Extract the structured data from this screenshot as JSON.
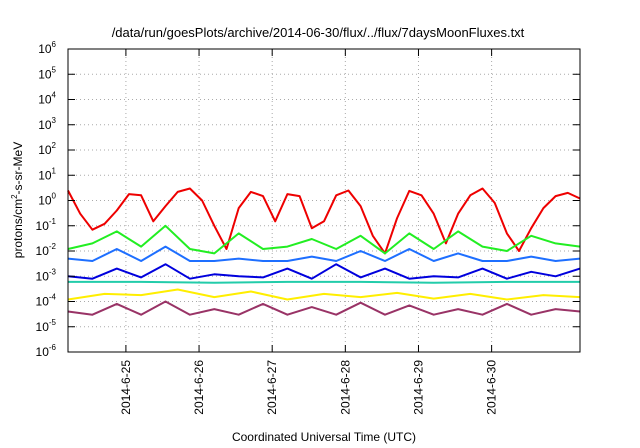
{
  "chart_data": {
    "type": "line",
    "title": "/data/run/goesPlots/archive/2014-06-30/flux/../flux/7daysMoonFluxes.txt",
    "xlabel": "Coordinated Universal Time (UTC)",
    "ylabel": {
      "base": "protons/cm",
      "sup": "2",
      "rest": "-s-sr-MeV"
    },
    "yscale": "log",
    "ylim": [
      1e-06,
      1000000.0
    ],
    "y_ticks": [
      {
        "base": "10",
        "exp": "-6",
        "value": 1e-06
      },
      {
        "base": "10",
        "exp": "-5",
        "value": 1e-05
      },
      {
        "base": "10",
        "exp": "-4",
        "value": 0.0001
      },
      {
        "base": "10",
        "exp": "-3",
        "value": 0.001
      },
      {
        "base": "10",
        "exp": "-2",
        "value": 0.01
      },
      {
        "base": "10",
        "exp": "-1",
        "value": 0.1
      },
      {
        "base": "10",
        "exp": "0",
        "value": 1
      },
      {
        "base": "10",
        "exp": "1",
        "value": 10
      },
      {
        "base": "10",
        "exp": "2",
        "value": 100
      },
      {
        "base": "10",
        "exp": "3",
        "value": 1000
      },
      {
        "base": "10",
        "exp": "4",
        "value": 10000
      },
      {
        "base": "10",
        "exp": "5",
        "value": 100000
      },
      {
        "base": "10",
        "exp": "6",
        "value": 1000000
      }
    ],
    "xlim": [
      "2014-06-24T05:00",
      "2014-07-01T05:00"
    ],
    "x_ticks": [
      {
        "label": "2014-6-25",
        "t": "2014-06-25T00:00"
      },
      {
        "label": "2014-6-26",
        "t": "2014-06-26T00:00"
      },
      {
        "label": "2014-6-27",
        "t": "2014-06-27T00:00"
      },
      {
        "label": "2014-6-28",
        "t": "2014-06-28T00:00"
      },
      {
        "label": "2014-6-29",
        "t": "2014-06-29T00:00"
      },
      {
        "label": "2014-6-30",
        "t": "2014-06-30T00:00"
      }
    ],
    "grid": true,
    "legend": "none",
    "series": [
      {
        "color": "#ee0000",
        "x": [
          "2014-06-24T05:00",
          "2014-06-24T09:00",
          "2014-06-24T13:00",
          "2014-06-24T17:00",
          "2014-06-24T21:00",
          "2014-06-25T01:00",
          "2014-06-25T05:00",
          "2014-06-25T09:00",
          "2014-06-25T13:00",
          "2014-06-25T17:00",
          "2014-06-25T21:00",
          "2014-06-26T01:00",
          "2014-06-26T05:00",
          "2014-06-26T09:00",
          "2014-06-26T13:00",
          "2014-06-26T17:00",
          "2014-06-26T21:00",
          "2014-06-27T01:00",
          "2014-06-27T05:00",
          "2014-06-27T09:00",
          "2014-06-27T13:00",
          "2014-06-27T17:00",
          "2014-06-27T21:00",
          "2014-06-28T01:00",
          "2014-06-28T05:00",
          "2014-06-28T09:00",
          "2014-06-28T13:00",
          "2014-06-28T17:00",
          "2014-06-28T21:00",
          "2014-06-29T01:00",
          "2014-06-29T05:00",
          "2014-06-29T09:00",
          "2014-06-29T13:00",
          "2014-06-29T17:00",
          "2014-06-29T21:00",
          "2014-06-30T01:00",
          "2014-06-30T05:00",
          "2014-06-30T09:00",
          "2014-06-30T13:00",
          "2014-06-30T17:00",
          "2014-06-30T21:00",
          "2014-07-01T01:00",
          "2014-07-01T05:00"
        ],
        "y": [
          2.5,
          0.3,
          0.07,
          0.12,
          0.4,
          1.8,
          1.6,
          0.15,
          0.6,
          2.2,
          3.0,
          1.0,
          0.1,
          0.012,
          0.5,
          2.2,
          1.5,
          0.15,
          1.8,
          1.5,
          0.08,
          0.15,
          1.6,
          2.5,
          0.6,
          0.04,
          0.008,
          0.2,
          2.4,
          1.6,
          0.3,
          0.02,
          0.3,
          1.6,
          3.0,
          0.8,
          0.05,
          0.01,
          0.08,
          0.5,
          1.5,
          2.0,
          1.2
        ]
      },
      {
        "color": "#22ee22",
        "x": [
          "2014-06-24T05:00",
          "2014-06-24T13:00",
          "2014-06-24T21:00",
          "2014-06-25T05:00",
          "2014-06-25T13:00",
          "2014-06-25T21:00",
          "2014-06-26T05:00",
          "2014-06-26T13:00",
          "2014-06-26T21:00",
          "2014-06-27T05:00",
          "2014-06-27T13:00",
          "2014-06-27T21:00",
          "2014-06-28T05:00",
          "2014-06-28T13:00",
          "2014-06-28T21:00",
          "2014-06-29T05:00",
          "2014-06-29T13:00",
          "2014-06-29T21:00",
          "2014-06-30T05:00",
          "2014-06-30T13:00",
          "2014-06-30T21:00",
          "2014-07-01T05:00"
        ],
        "y": [
          0.012,
          0.02,
          0.06,
          0.015,
          0.1,
          0.012,
          0.008,
          0.05,
          0.012,
          0.015,
          0.03,
          0.012,
          0.04,
          0.008,
          0.05,
          0.012,
          0.06,
          0.015,
          0.01,
          0.04,
          0.02,
          0.015
        ]
      },
      {
        "color": "#1e6fff",
        "x": [
          "2014-06-24T05:00",
          "2014-06-24T13:00",
          "2014-06-24T21:00",
          "2014-06-25T05:00",
          "2014-06-25T13:00",
          "2014-06-25T21:00",
          "2014-06-26T05:00",
          "2014-06-26T13:00",
          "2014-06-26T21:00",
          "2014-06-27T05:00",
          "2014-06-27T13:00",
          "2014-06-27T21:00",
          "2014-06-28T05:00",
          "2014-06-28T13:00",
          "2014-06-28T21:00",
          "2014-06-29T05:00",
          "2014-06-29T13:00",
          "2014-06-29T21:00",
          "2014-06-30T05:00",
          "2014-06-30T13:00",
          "2014-06-30T21:00",
          "2014-07-01T05:00"
        ],
        "y": [
          0.005,
          0.004,
          0.012,
          0.004,
          0.015,
          0.004,
          0.004,
          0.005,
          0.004,
          0.004,
          0.006,
          0.004,
          0.01,
          0.004,
          0.012,
          0.004,
          0.008,
          0.004,
          0.004,
          0.006,
          0.004,
          0.005
        ]
      },
      {
        "color": "#0000dd",
        "x": [
          "2014-06-24T05:00",
          "2014-06-24T13:00",
          "2014-06-24T21:00",
          "2014-06-25T05:00",
          "2014-06-25T13:00",
          "2014-06-25T21:00",
          "2014-06-26T05:00",
          "2014-06-26T13:00",
          "2014-06-26T21:00",
          "2014-06-27T05:00",
          "2014-06-27T13:00",
          "2014-06-27T21:00",
          "2014-06-28T05:00",
          "2014-06-28T13:00",
          "2014-06-28T21:00",
          "2014-06-29T05:00",
          "2014-06-29T13:00",
          "2014-06-29T21:00",
          "2014-06-30T05:00",
          "2014-06-30T13:00",
          "2014-06-30T21:00",
          "2014-07-01T05:00"
        ],
        "y": [
          0.001,
          0.0008,
          0.002,
          0.0009,
          0.003,
          0.0008,
          0.0012,
          0.001,
          0.0009,
          0.002,
          0.0008,
          0.003,
          0.0009,
          0.002,
          0.0008,
          0.001,
          0.0009,
          0.002,
          0.0008,
          0.0015,
          0.001,
          0.002
        ]
      },
      {
        "color": "#22ccaa",
        "x": [
          "2014-06-24T05:00",
          "2014-06-25T05:00",
          "2014-06-26T05:00",
          "2014-06-27T05:00",
          "2014-06-28T05:00",
          "2014-06-29T05:00",
          "2014-06-30T05:00",
          "2014-07-01T05:00"
        ],
        "y": [
          0.0006,
          0.0006,
          0.00055,
          0.0006,
          0.0006,
          0.00055,
          0.0006,
          0.0006
        ]
      },
      {
        "color": "#ffee00",
        "x": [
          "2014-06-24T05:00",
          "2014-06-24T17:00",
          "2014-06-25T05:00",
          "2014-06-25T17:00",
          "2014-06-26T05:00",
          "2014-06-26T17:00",
          "2014-06-27T05:00",
          "2014-06-27T17:00",
          "2014-06-28T05:00",
          "2014-06-28T17:00",
          "2014-06-29T05:00",
          "2014-06-29T17:00",
          "2014-06-30T05:00",
          "2014-06-30T17:00",
          "2014-07-01T05:00"
        ],
        "y": [
          0.00012,
          0.0002,
          0.00018,
          0.0003,
          0.00015,
          0.00025,
          0.00012,
          0.0002,
          0.00015,
          0.00022,
          0.00013,
          0.0002,
          0.00012,
          0.00018,
          0.00015
        ]
      },
      {
        "color": "#993366",
        "x": [
          "2014-06-24T05:00",
          "2014-06-24T13:00",
          "2014-06-24T21:00",
          "2014-06-25T05:00",
          "2014-06-25T13:00",
          "2014-06-25T21:00",
          "2014-06-26T05:00",
          "2014-06-26T13:00",
          "2014-06-26T21:00",
          "2014-06-27T05:00",
          "2014-06-27T13:00",
          "2014-06-27T21:00",
          "2014-06-28T05:00",
          "2014-06-28T13:00",
          "2014-06-28T21:00",
          "2014-06-29T05:00",
          "2014-06-29T13:00",
          "2014-06-29T21:00",
          "2014-06-30T05:00",
          "2014-06-30T13:00",
          "2014-06-30T21:00",
          "2014-07-01T05:00"
        ],
        "y": [
          4e-05,
          3e-05,
          8e-05,
          3e-05,
          0.0001,
          3e-05,
          5e-05,
          3e-05,
          8e-05,
          3e-05,
          6e-05,
          3e-05,
          9e-05,
          3e-05,
          7e-05,
          3e-05,
          5e-05,
          3e-05,
          8e-05,
          3e-05,
          5e-05,
          4e-05
        ]
      }
    ]
  }
}
